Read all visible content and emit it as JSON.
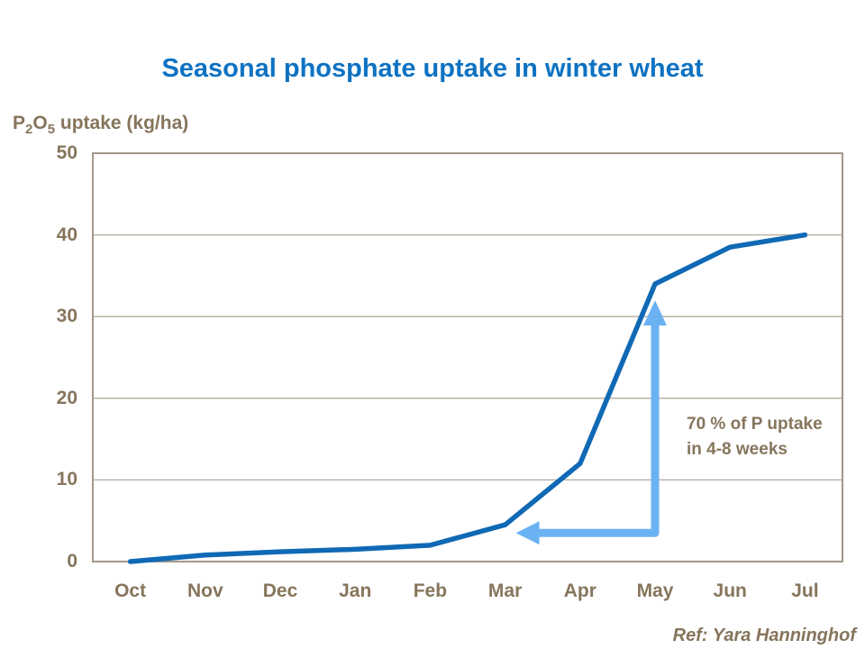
{
  "title": {
    "text": "Seasonal phosphate uptake in winter wheat"
  },
  "axis_label": {
    "p1": "P",
    "s1": "2",
    "p2": "O",
    "s2": "5",
    "rest": " uptake (kg/ha)"
  },
  "annotation": {
    "text": "70 % of P uptake in 4-8 weeks"
  },
  "footer": {
    "ref": "Ref: Yara Hanninghof"
  },
  "colors": {
    "title_blue": "#0e72c2",
    "series_line": "#1069b4",
    "arrow_blue": "#6ab2f2",
    "text_brown": "#86755c",
    "axis_border": "#a39789",
    "gridline": "#b5ab9e",
    "background": "#ffffff"
  },
  "chart_data": {
    "type": "line",
    "title": "Seasonal phosphate uptake in winter wheat",
    "xlabel": "",
    "ylabel": "P2O5 uptake (kg/ha)",
    "categories": [
      "Oct",
      "Nov",
      "Dec",
      "Jan",
      "Feb",
      "Mar",
      "Apr",
      "May",
      "Jun",
      "Jul"
    ],
    "series": [
      {
        "name": "P2O5 uptake",
        "values": [
          0,
          0.8,
          1.2,
          1.5,
          2,
          4.5,
          12,
          34,
          38.5,
          40
        ]
      }
    ],
    "ylim": [
      0,
      50
    ],
    "yticks": [
      0,
      10,
      20,
      30,
      40,
      50
    ],
    "grid": "horizontal",
    "legend": "none",
    "annotations": [
      {
        "text": "70 % of P uptake in 4-8 weeks"
      }
    ]
  },
  "annotation_arrow": {
    "color": "#6ab2f2",
    "vertical": {
      "month": "May",
      "from_value": 3.5,
      "to_value": 32
    },
    "horizontal": {
      "at_value": 3.5,
      "from_month": "May",
      "to_month": "Mar"
    }
  }
}
